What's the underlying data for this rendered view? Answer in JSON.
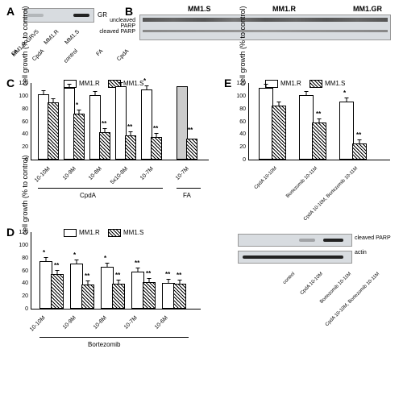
{
  "panelA": {
    "label": "A",
    "target": "GR",
    "lanes": [
      "MM1.R-GRV5",
      "MM1.R",
      "MM1.S"
    ]
  },
  "panelB": {
    "label": "B",
    "groups": [
      "MM1.S",
      "MM1.R",
      "MM1.GR"
    ],
    "treatments": [
      "control",
      "FA",
      "CpdA"
    ],
    "rows": [
      "uncleaved PARP",
      "cleaved PARP"
    ]
  },
  "panelC": {
    "label": "C",
    "ylabel": "cell growth (% to control)",
    "ylim": 120,
    "legend": [
      "MM1.R",
      "MM1.S"
    ],
    "bars": [
      {
        "x": "10-10M",
        "r": 100,
        "s": 87,
        "rs": "",
        "ss": ""
      },
      {
        "x": "10-9M",
        "r": 110,
        "s": 70,
        "rs": "",
        "ss": "*"
      },
      {
        "x": "10-8M",
        "r": 99,
        "s": 40,
        "rs": "",
        "ss": "**"
      },
      {
        "x": "5x10-8M",
        "r": 112,
        "s": 36,
        "rs": "",
        "ss": "**"
      },
      {
        "x": "10-7M",
        "r": 107,
        "s": 33,
        "rs": "*",
        "ss": "**"
      }
    ],
    "fa": {
      "x": "10-7M",
      "r": 112,
      "s": 30,
      "ss": "**"
    },
    "xgroup1": "CpdA",
    "xgroup2": "FA"
  },
  "panelD": {
    "label": "D",
    "ylabel": "cell growth (% to control)",
    "ylim": 120,
    "legend": [
      "MM1.R",
      "MM1.S"
    ],
    "bars": [
      {
        "x": "10-10M",
        "r": 72,
        "s": 52,
        "rs": "*",
        "ss": "**"
      },
      {
        "x": "10-9M",
        "r": 68,
        "s": 36,
        "rs": "*",
        "ss": "**"
      },
      {
        "x": "10-8M",
        "r": 63,
        "s": 37,
        "rs": "*",
        "ss": "**"
      },
      {
        "x": "10-7M",
        "r": 55,
        "s": 39,
        "rs": "**",
        "ss": "**"
      },
      {
        "x": "10-6M",
        "r": 38,
        "s": 37,
        "rs": "**",
        "ss": "**"
      }
    ],
    "xgroup": "Bortezomib"
  },
  "panelE": {
    "label": "E",
    "ylabel": "cell growth (% to control)",
    "ylim": 120,
    "legend": [
      "MM1.R",
      "MM1.S"
    ],
    "bars": [
      {
        "x": "CpdA 10-10M",
        "r": 110,
        "s": 82,
        "rs": "",
        "ss": ""
      },
      {
        "x": "Bortezomib 10-11M",
        "r": 99,
        "s": 55,
        "rs": "",
        "ss": "**"
      },
      {
        "x": "CpdA 10-10M, Bortezomib 10-11M",
        "r": 88,
        "s": 23,
        "rs": "*",
        "ss": "**"
      }
    ]
  },
  "panelE2": {
    "rows": [
      "cleaved PARP",
      "actin"
    ],
    "lanes": [
      "control",
      "CpdA 10-10M",
      "Bortezomib 10-11M",
      "CpdA 10-10M, Bortezomib 10-11M"
    ]
  }
}
